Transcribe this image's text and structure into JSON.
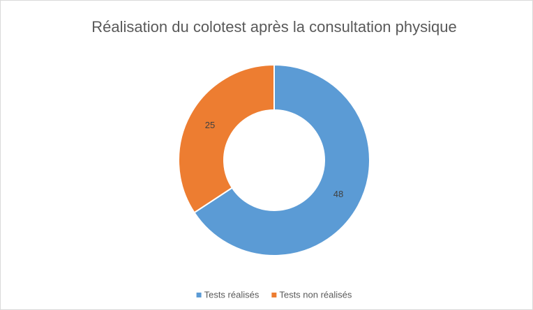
{
  "chart_data": {
    "type": "donut",
    "title": "Réalisation du colotest après la consultation physique",
    "categories": [
      "Tests réalisés",
      "Tests non réalisés"
    ],
    "values": [
      48,
      25
    ],
    "colors": [
      "#5b9bd5",
      "#ed7d31"
    ],
    "legend": "bottom"
  }
}
